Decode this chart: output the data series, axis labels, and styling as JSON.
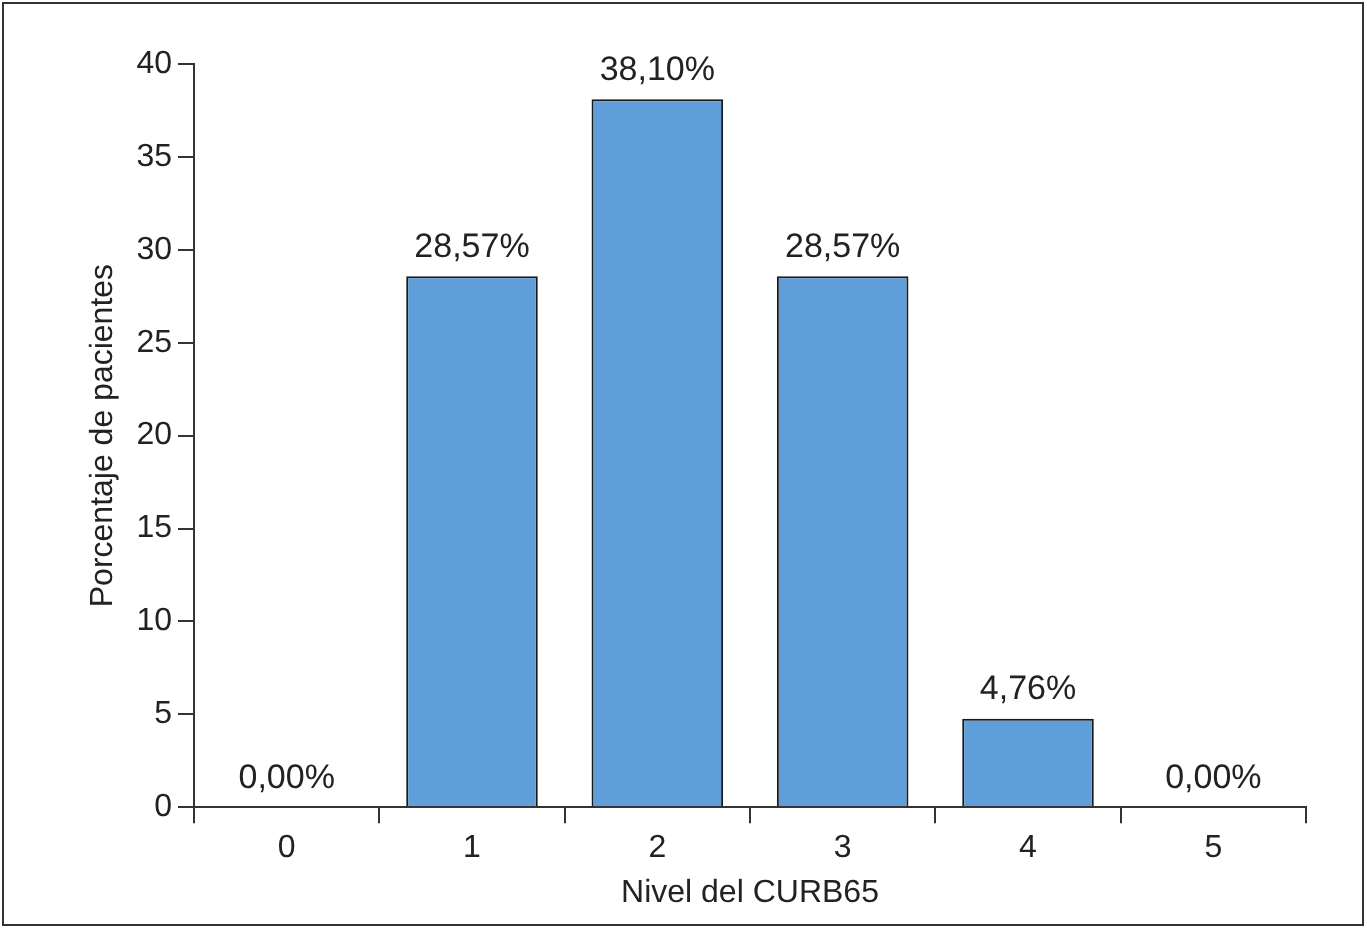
{
  "chart_data": {
    "type": "bar",
    "xlabel": "Nivel del CURB65",
    "ylabel": "Porcentaje de pacientes",
    "categories": [
      "0",
      "1",
      "2",
      "3",
      "4",
      "5"
    ],
    "values": [
      0,
      28.57,
      38.1,
      28.57,
      4.76,
      0
    ],
    "value_labels": [
      "0,00%",
      "28,57%",
      "38,10%",
      "28,57%",
      "4,76%",
      "0,00%"
    ],
    "color": "#5f9ed8",
    "ylim": [
      0,
      40
    ],
    "yticks": [
      0,
      5,
      10,
      15,
      20,
      25,
      30,
      35,
      40
    ],
    "grid": false,
    "legend": false
  }
}
